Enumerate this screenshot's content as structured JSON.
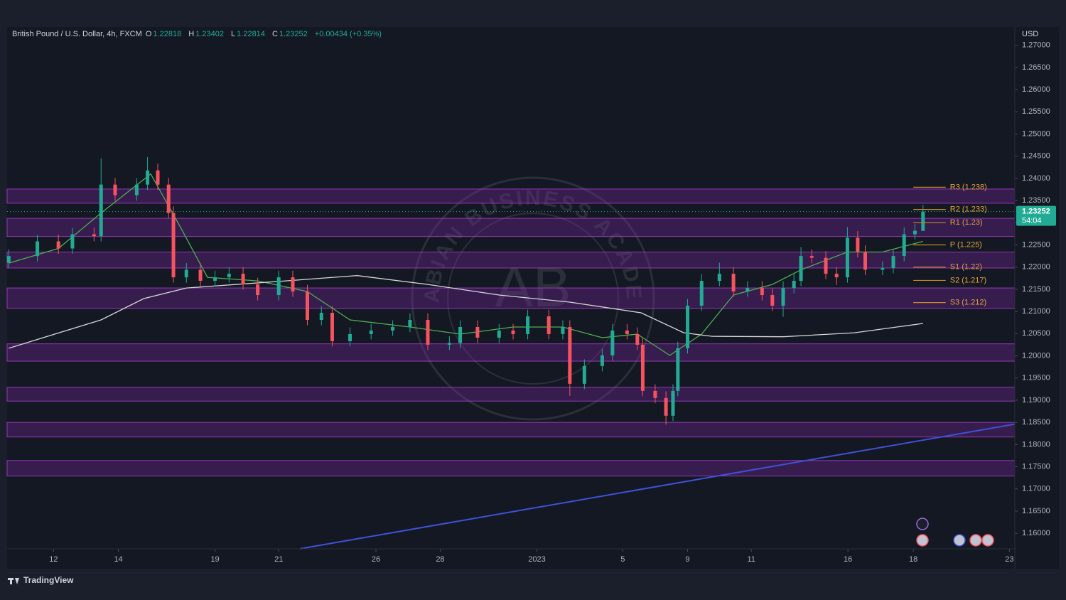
{
  "chart_data": {
    "type": "candlestick",
    "title": "British Pound / U.S. Dollar, 4h, FXCM",
    "ohlc_legend": [
      {
        "key": "O",
        "value": "1.22818"
      },
      {
        "key": "H",
        "value": "1.23402"
      },
      {
        "key": "L",
        "value": "1.22814"
      },
      {
        "key": "C",
        "value": "1.23252"
      }
    ],
    "change": "+0.00434 (+0.35%)",
    "y_axis_label": "USD",
    "up_color": "#22ab94",
    "down_color": "#f7525f",
    "x": [
      0,
      5.3,
      9.2,
      11.8,
      15.8,
      17.1,
      19.7,
      23.7,
      25.7,
      27.6,
      29.6,
      30.5,
      32.9,
      35.5,
      38.2,
      40.8,
      43.4,
      46.1,
      50,
      52.6,
      55.3,
      57.9,
      59.9,
      63.2,
      67.1,
      71.1,
      74.3,
      77.6,
      81.6,
      83.6,
      86.8,
      90.8,
      93.4,
      96.1,
      100,
      102.6,
      103.9,
      106.6,
      109.9,
      111.8,
      114.5,
      116.4,
      117.4,
      119.7,
      121.7,
      123,
      123.9,
      125.7,
      128.3,
      131.6,
      134.2,
      136.8,
      139.5,
      141.4,
      143.4,
      145.4,
      146.7,
      148.7,
      151.3,
      153.3,
      155.3,
      157.2,
      158.6,
      161.8,
      163.8,
      165.8,
      167.8,
      169.3
    ],
    "open": [
      1.221,
      1.2225,
      1.2258,
      1.2242,
      1.2274,
      1.227,
      1.2386,
      1.2362,
      1.2386,
      1.2418,
      1.2386,
      1.2322,
      1.2177,
      1.2194,
      1.2169,
      1.2177,
      1.2185,
      1.2161,
      1.2137,
      1.2177,
      1.2145,
      1.2081,
      1.2097,
      1.2033,
      1.2049,
      1.2057,
      1.2065,
      1.2081,
      1.2025,
      1.2029,
      1.2065,
      1.2041,
      1.2057,
      1.2049,
      1.2089,
      1.2049,
      1.2065,
      1.1937,
      1.1977,
      1.2001,
      1.2057,
      1.2049,
      1.2025,
      1.1921,
      1.1905,
      1.1865,
      1.1921,
      1.2017,
      1.2113,
      1.2169,
      1.2185,
      1.2145,
      1.2153,
      1.2137,
      1.2113,
      1.2153,
      1.2169,
      1.2225,
      1.2221,
      1.2185,
      1.2177,
      1.2266,
      1.2234,
      1.2194,
      1.2198,
      1.2225,
      1.2274,
      1.22818
    ],
    "high": [
      1.224,
      1.2273,
      1.2273,
      1.2289,
      1.2289,
      1.2445,
      1.2401,
      1.2401,
      1.2448,
      1.2433,
      1.2401,
      1.2337,
      1.2209,
      1.2209,
      1.2192,
      1.22,
      1.22,
      1.2176,
      1.2192,
      1.2192,
      1.216,
      1.2112,
      1.2112,
      1.2064,
      1.2072,
      1.208,
      1.2096,
      1.2096,
      1.2044,
      1.208,
      1.208,
      1.2072,
      1.2072,
      1.2104,
      1.2104,
      1.208,
      1.208,
      1.1992,
      1.2016,
      1.2072,
      1.2072,
      1.2064,
      1.204,
      1.1936,
      1.192,
      1.1936,
      1.2032,
      1.2128,
      1.2184,
      1.221,
      1.22,
      1.2168,
      1.2168,
      1.2152,
      1.2168,
      1.2184,
      1.2245,
      1.224,
      1.2236,
      1.22,
      1.229,
      1.2281,
      1.2249,
      1.2213,
      1.224,
      1.2289,
      1.2297,
      1.23402
    ],
    "low": [
      1.2198,
      1.2213,
      1.223,
      1.223,
      1.2258,
      1.2258,
      1.235,
      1.235,
      1.2374,
      1.2374,
      1.231,
      1.2165,
      1.2165,
      1.2157,
      1.2157,
      1.2165,
      1.2149,
      1.2125,
      1.2125,
      1.2133,
      1.2069,
      1.2069,
      1.2021,
      1.2021,
      1.2037,
      1.2045,
      1.2053,
      1.2013,
      1.2013,
      1.2017,
      1.2029,
      1.2029,
      1.2037,
      1.2037,
      1.2037,
      1.2037,
      1.191,
      1.1925,
      1.1965,
      1.1989,
      1.2037,
      1.2013,
      1.1909,
      1.1893,
      1.1845,
      1.1853,
      1.1909,
      1.2005,
      1.2101,
      1.2157,
      1.2133,
      1.2133,
      1.2125,
      1.2101,
      1.2088,
      1.2141,
      1.2157,
      1.2209,
      1.2173,
      1.216,
      1.2165,
      1.2222,
      1.2182,
      1.2182,
      1.2186,
      1.2213,
      1.2262,
      1.22814
    ],
    "close": [
      1.2225,
      1.2258,
      1.2242,
      1.2274,
      1.227,
      1.2386,
      1.2362,
      1.2386,
      1.2418,
      1.2386,
      1.2322,
      1.2177,
      1.2194,
      1.2169,
      1.2177,
      1.2185,
      1.2161,
      1.2137,
      1.2177,
      1.2145,
      1.2081,
      1.2097,
      1.2033,
      1.2049,
      1.2057,
      1.2065,
      1.2081,
      1.2025,
      1.2029,
      1.2065,
      1.2041,
      1.2057,
      1.2049,
      1.2089,
      1.2049,
      1.2065,
      1.1937,
      1.1977,
      1.2001,
      1.2057,
      1.2049,
      1.2025,
      1.1921,
      1.1905,
      1.1865,
      1.1921,
      1.2017,
      1.2113,
      1.2169,
      1.2185,
      1.2145,
      1.2153,
      1.2137,
      1.2113,
      1.2153,
      1.2169,
      1.2225,
      1.2221,
      1.2185,
      1.2177,
      1.2266,
      1.2234,
      1.2194,
      1.2198,
      1.2225,
      1.2274,
      1.2282,
      1.23252
    ],
    "xlim": [
      -0.3,
      186.3
    ],
    "xticks": [
      {
        "value": 8.3,
        "label": "12"
      },
      {
        "value": 20.3,
        "label": "14"
      },
      {
        "value": 38.2,
        "label": "19"
      },
      {
        "value": 50,
        "label": "21"
      },
      {
        "value": 68,
        "label": "26"
      },
      {
        "value": 79.9,
        "label": "28"
      },
      {
        "value": 97.8,
        "label": "2023"
      },
      {
        "value": 113.7,
        "label": "5"
      },
      {
        "value": 125.7,
        "label": "9"
      },
      {
        "value": 137.5,
        "label": "11"
      },
      {
        "value": 155.4,
        "label": "16"
      },
      {
        "value": 167.5,
        "label": "18"
      },
      {
        "value": 185.3,
        "label": "23"
      }
    ],
    "ylim": [
      1.1565,
      1.2738
    ],
    "yticks": [
      {
        "value": 1.27,
        "label": "1.27000"
      },
      {
        "value": 1.265,
        "label": "1.26500"
      },
      {
        "value": 1.26,
        "label": "1.26000"
      },
      {
        "value": 1.255,
        "label": "1.25500"
      },
      {
        "value": 1.25,
        "label": "1.25000"
      },
      {
        "value": 1.245,
        "label": "1.24500"
      },
      {
        "value": 1.24,
        "label": "1.24000"
      },
      {
        "value": 1.235,
        "label": "1.23500"
      },
      {
        "value": 1.23,
        "label": "1.23000"
      },
      {
        "value": 1.225,
        "label": "1.22500"
      },
      {
        "value": 1.22,
        "label": "1.22000"
      },
      {
        "value": 1.215,
        "label": "1.21500"
      },
      {
        "value": 1.21,
        "label": "1.21000"
      },
      {
        "value": 1.205,
        "label": "1.20500"
      },
      {
        "value": 1.2,
        "label": "1.20000"
      },
      {
        "value": 1.195,
        "label": "1.19500"
      },
      {
        "value": 1.19,
        "label": "1.19000"
      },
      {
        "value": 1.185,
        "label": "1.18500"
      },
      {
        "value": 1.18,
        "label": "1.18000"
      },
      {
        "value": 1.175,
        "label": "1.17500"
      },
      {
        "value": 1.17,
        "label": "1.17000"
      },
      {
        "value": 1.165,
        "label": "1.16500"
      },
      {
        "value": 1.16,
        "label": "1.16000"
      }
    ],
    "grid": false,
    "moving_averages": [
      {
        "color": "#4caf50",
        "x": [
          0,
          9.2,
          17.1,
          26.3,
          31.8,
          36.8,
          46.1,
          55.3,
          63.2,
          74.3,
          83.6,
          93.4,
          102.6,
          109.9,
          116.4,
          122.4,
          128.3,
          134.2,
          141.4,
          146.7,
          155.3,
          161.8,
          169.3
        ],
        "values": [
          1.2209,
          1.2242,
          1.2322,
          1.241,
          1.229,
          1.2177,
          1.2169,
          1.2145,
          1.2081,
          1.2065,
          1.2049,
          1.2065,
          1.2065,
          1.2041,
          1.2049,
          1.2001,
          1.2049,
          1.2137,
          1.2161,
          1.2194,
          1.2234,
          1.2234,
          1.2258
        ]
      },
      {
        "color": "#d8d8d8",
        "x": [
          0,
          17.1,
          25,
          32.9,
          51.3,
          64.5,
          77.6,
          90.8,
          103.9,
          117.1,
          125,
          130.3,
          143.4,
          156.6,
          169.3
        ],
        "values": [
          1.2017,
          1.2081,
          1.2129,
          1.2153,
          1.2169,
          1.2181,
          1.2161,
          1.2137,
          1.2121,
          1.2097,
          1.2052,
          1.2044,
          1.2043,
          1.2052,
          1.2073
        ]
      }
    ],
    "trendline": {
      "color": "#3f51d8",
      "x": [
        53.9,
        186.3
      ],
      "values": [
        1.1565,
        1.1846
      ]
    },
    "zones": [
      [
        1.2376,
        1.2344
      ],
      [
        1.231,
        1.2269
      ],
      [
        1.2234,
        1.2198
      ],
      [
        1.2153,
        1.2107
      ],
      [
        1.2027,
        1.1988
      ],
      [
        1.1929,
        1.1898
      ],
      [
        1.185,
        1.1817
      ],
      [
        1.1764,
        1.1729
      ]
    ],
    "pivots": [
      {
        "label": "R3 (1.238)",
        "value": 1.238
      },
      {
        "label": "R2 (1.233)",
        "value": 1.233
      },
      {
        "label": "R1 (1.23)",
        "value": 1.23
      },
      {
        "label": "P (1.225)",
        "value": 1.225
      },
      {
        "label": "S1 (1.22)",
        "value": 1.22
      },
      {
        "label": "S2 (1.217)",
        "value": 1.217
      },
      {
        "label": "S3 (1.212)",
        "value": 1.212
      }
    ],
    "last_price": {
      "label": "1.23252",
      "countdown": "54:04"
    },
    "watermark": "ARABIAN BUSINESS ACADEMY",
    "watermark_logo": "AB"
  },
  "footer": "TradingView"
}
